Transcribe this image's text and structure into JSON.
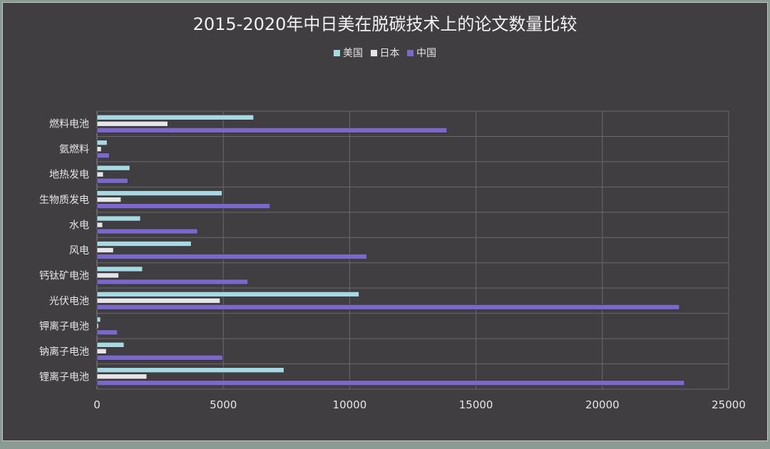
{
  "chart_data": {
    "type": "bar",
    "orientation": "horizontal",
    "title": "2015-2020年中日美在脱碳技术上的论文数量比较",
    "categories": [
      "燃料电池",
      "氨燃料",
      "地热发电",
      "生物质发电",
      "水电",
      "风电",
      "钙钛矿电池",
      "光伏电池",
      "钾离子电池",
      "钠离子电池",
      "锂离子电池"
    ],
    "series": [
      {
        "name": "美国",
        "color": "#a8d8e2",
        "values": [
          6200,
          400,
          1300,
          4950,
          1720,
          3730,
          1800,
          10370,
          140,
          1070,
          7400
        ]
      },
      {
        "name": "日本",
        "color": "#e6e4e8",
        "values": [
          2800,
          170,
          250,
          950,
          220,
          650,
          860,
          4870,
          60,
          370,
          1970
        ]
      },
      {
        "name": "中国",
        "color": "#7b68c8",
        "values": [
          13850,
          490,
          1220,
          6850,
          3980,
          10680,
          5970,
          23050,
          810,
          4970,
          23250
        ]
      }
    ],
    "xlim": [
      0,
      25000
    ],
    "xticks": [
      "0",
      "5000",
      "10000",
      "15000",
      "20000",
      "25000"
    ],
    "xlabel": "",
    "ylabel": "",
    "grid": true,
    "legend_position": "top"
  }
}
